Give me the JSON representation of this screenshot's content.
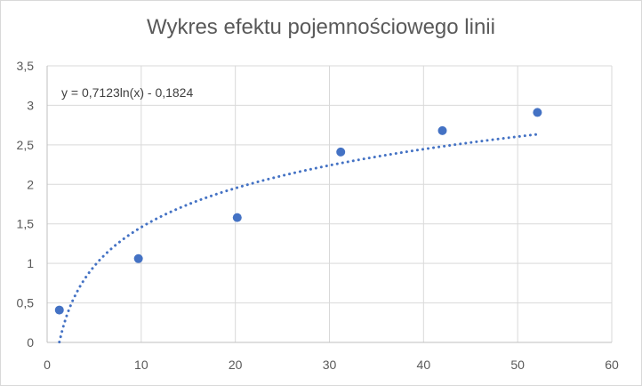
{
  "chart_data": {
    "type": "scatter",
    "title": "Wykres efektu pojemnościowego linii",
    "xlabel": "",
    "ylabel": "",
    "xlim": [
      0,
      60
    ],
    "ylim": [
      0,
      3.5
    ],
    "x_ticks": [
      "0",
      "10",
      "20",
      "30",
      "40",
      "50",
      "60"
    ],
    "y_ticks": [
      "0",
      "0,5",
      "1",
      "1,5",
      "2",
      "2,5",
      "3",
      "3,5"
    ],
    "grid": true,
    "legend": "none",
    "series": [
      {
        "x": [
          1.3,
          9.7,
          20.2,
          31.2,
          42,
          52.1
        ],
        "y": [
          0.41,
          1.06,
          1.58,
          2.41,
          2.68,
          2.91
        ],
        "color": "#4472c4"
      }
    ],
    "trendline": {
      "type": "logarithmic",
      "equation": "y = 0,7123ln(x) - 0,1824",
      "a": 0.7123,
      "b": -0.1824,
      "x_range": [
        1.3,
        52.1
      ],
      "style": "dotted",
      "color": "#4472c4"
    }
  }
}
